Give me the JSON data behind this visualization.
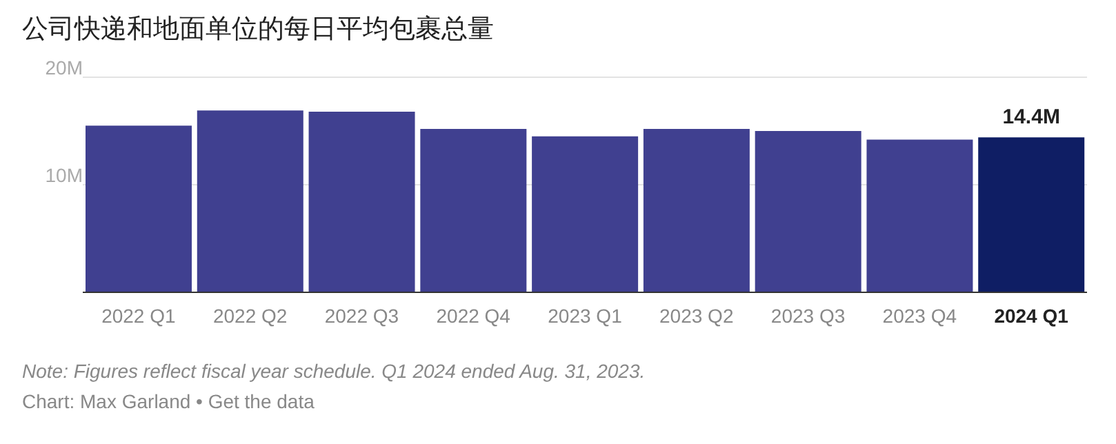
{
  "chart_data": {
    "type": "bar",
    "title": "公司快递和地面单位的每日平均包裹总量",
    "categories": [
      "2022 Q1",
      "2022 Q2",
      "2022 Q3",
      "2022 Q4",
      "2023 Q1",
      "2023 Q2",
      "2023 Q3",
      "2023 Q4",
      "2024 Q1"
    ],
    "values": [
      15.5,
      16.9,
      16.8,
      15.2,
      14.5,
      15.2,
      15.0,
      14.2,
      14.4
    ],
    "colors": [
      "#404090",
      "#404090",
      "#404090",
      "#404090",
      "#404090",
      "#404090",
      "#404090",
      "#404090",
      "#0f1e64"
    ],
    "value_labels": [
      null,
      null,
      null,
      null,
      null,
      null,
      null,
      null,
      "14.4M"
    ],
    "ylim": [
      0,
      20
    ],
    "yticks": [
      {
        "value": 10,
        "label": "10M"
      },
      {
        "value": 20,
        "label": "20M"
      }
    ],
    "grid": "y",
    "annotations": [
      "Note: Figures reflect fiscal year schedule. Q1 2024 ended Aug. 31, 2023.",
      "Chart: Max Garland • Get the data"
    ]
  }
}
